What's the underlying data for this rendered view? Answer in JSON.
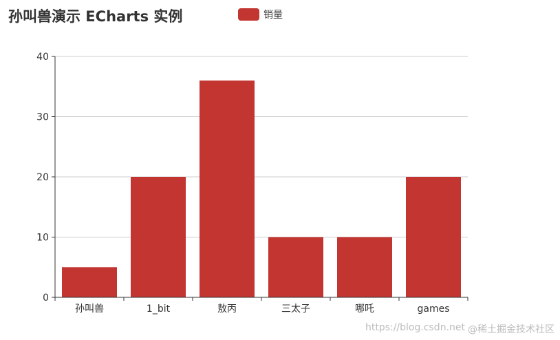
{
  "title": "孙叫兽演示 ECharts 实例",
  "legend": {
    "label": "销量",
    "color": "#c23531"
  },
  "watermark": {
    "url": "https://blog.csdn.net",
    "brand": "@稀土掘金技术社区"
  },
  "chart_data": {
    "type": "bar",
    "title": "孙叫兽演示 ECharts 实例",
    "categories": [
      "孙叫兽",
      "1_bit",
      "敖丙",
      "三太子",
      "哪吒",
      "games"
    ],
    "series": [
      {
        "name": "销量",
        "values": [
          5,
          20,
          36,
          10,
          10,
          20
        ],
        "color": "#c23531"
      }
    ],
    "ylim": [
      0,
      40
    ],
    "yticks": [
      0,
      10,
      20,
      30,
      40
    ],
    "grid": true,
    "legend_position": "top"
  }
}
